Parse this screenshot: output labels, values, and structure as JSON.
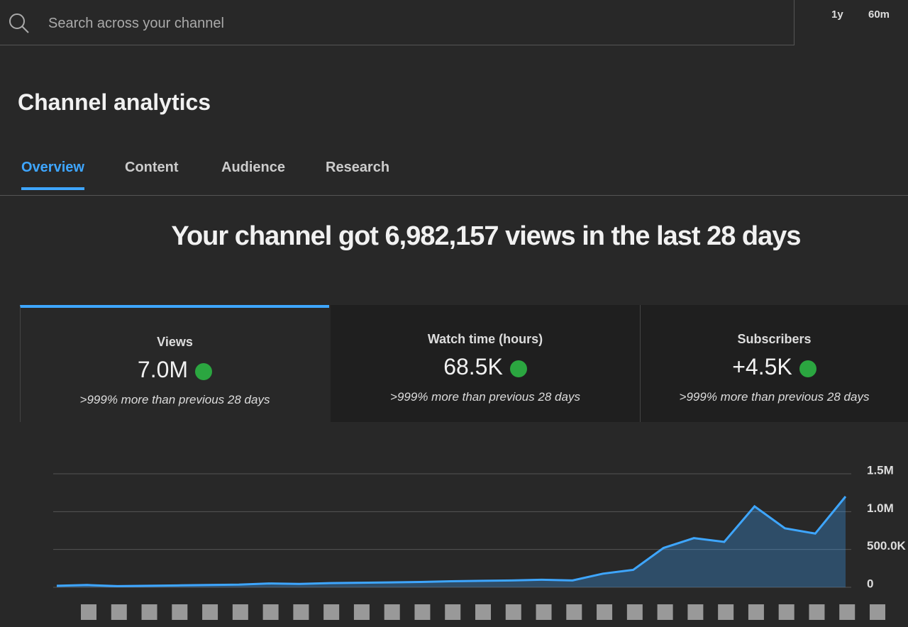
{
  "search": {
    "placeholder": "Search across your channel"
  },
  "realtime": {
    "period": "1y",
    "window": "60m"
  },
  "header": {
    "title": "Channel analytics"
  },
  "tabs": [
    "Overview",
    "Content",
    "Audience",
    "Research"
  ],
  "headline": "Your channel got 6,982,157 views in the last 28 days",
  "metrics": [
    {
      "label": "Views",
      "value": "7.0M",
      "change": ">999% more than previous 28 days"
    },
    {
      "label": "Watch time (hours)",
      "value": "68.5K",
      "change": ">999% more than previous 28 days"
    },
    {
      "label": "Subscribers",
      "value": "+4.5K",
      "change": ">999% more than previous 28 days"
    }
  ],
  "chart_data": {
    "type": "area",
    "color": "#3ea6ff",
    "values": [
      20000,
      30000,
      15000,
      20000,
      25000,
      30000,
      35000,
      50000,
      45000,
      55000,
      60000,
      65000,
      70000,
      80000,
      85000,
      90000,
      100000,
      90000,
      180000,
      230000,
      520000,
      650000,
      600000,
      1070000,
      780000,
      710000,
      1200000
    ],
    "ylim": [
      0,
      1500000
    ],
    "yticks": [
      0,
      {
        "value": 500000,
        "label": "500.0K"
      },
      {
        "value": 1000000,
        "label": "1.0M"
      },
      {
        "value": 1500000,
        "label": "1.5M"
      }
    ],
    "grid": true
  }
}
